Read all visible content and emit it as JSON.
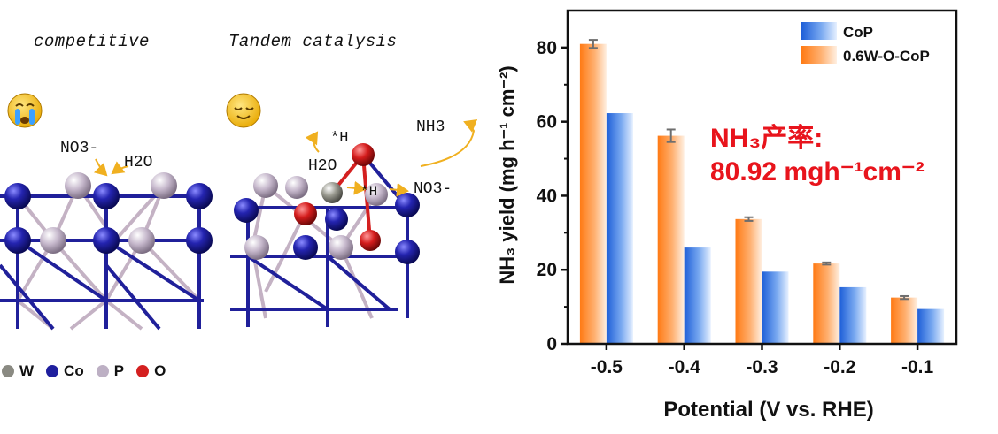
{
  "scheme": {
    "left_title": "competitive",
    "right_title": "Tandem catalysis",
    "labels": {
      "no3_left": "NO3-",
      "h2o_left": "H2O",
      "h_top": "*H",
      "h2o_right": "H2O",
      "h_mid": "*H",
      "no3_right": "NO3-",
      "nh3": "NH3"
    },
    "atom_legend": [
      {
        "symbol": "W",
        "color": "#8a8a82"
      },
      {
        "symbol": "Co",
        "color": "#1f1f9e"
      },
      {
        "symbol": "P",
        "color": "#bdb0c4"
      },
      {
        "symbol": "O",
        "color": "#d42020"
      }
    ]
  },
  "annotation": {
    "line1": "NH₃产率:",
    "line2": "80.92 mgh⁻¹cm⁻²",
    "color": "#e8141c"
  },
  "chart_data": {
    "type": "bar",
    "xlabel": "Potential (V vs. RHE)",
    "ylabel": "NH₃ yield (mg h⁻¹ cm⁻²)",
    "categories": [
      "-0.5",
      "-0.4",
      "-0.3",
      "-0.2",
      "-0.1"
    ],
    "ylim": [
      0,
      90
    ],
    "yticks": [
      0,
      20,
      40,
      60,
      80
    ],
    "series": [
      {
        "name": "CoP",
        "values": [
          62.3,
          26.0,
          19.5,
          15.3,
          9.4
        ],
        "color": "#3a78e0"
      },
      {
        "name": "0.6W-O-CoP",
        "values": [
          81.0,
          56.2,
          33.7,
          21.7,
          12.5
        ],
        "errors": [
          1.1,
          1.7,
          0.5,
          0.3,
          0.4
        ],
        "color": "#ff8a2a"
      }
    ],
    "legend_position": "top-right"
  }
}
